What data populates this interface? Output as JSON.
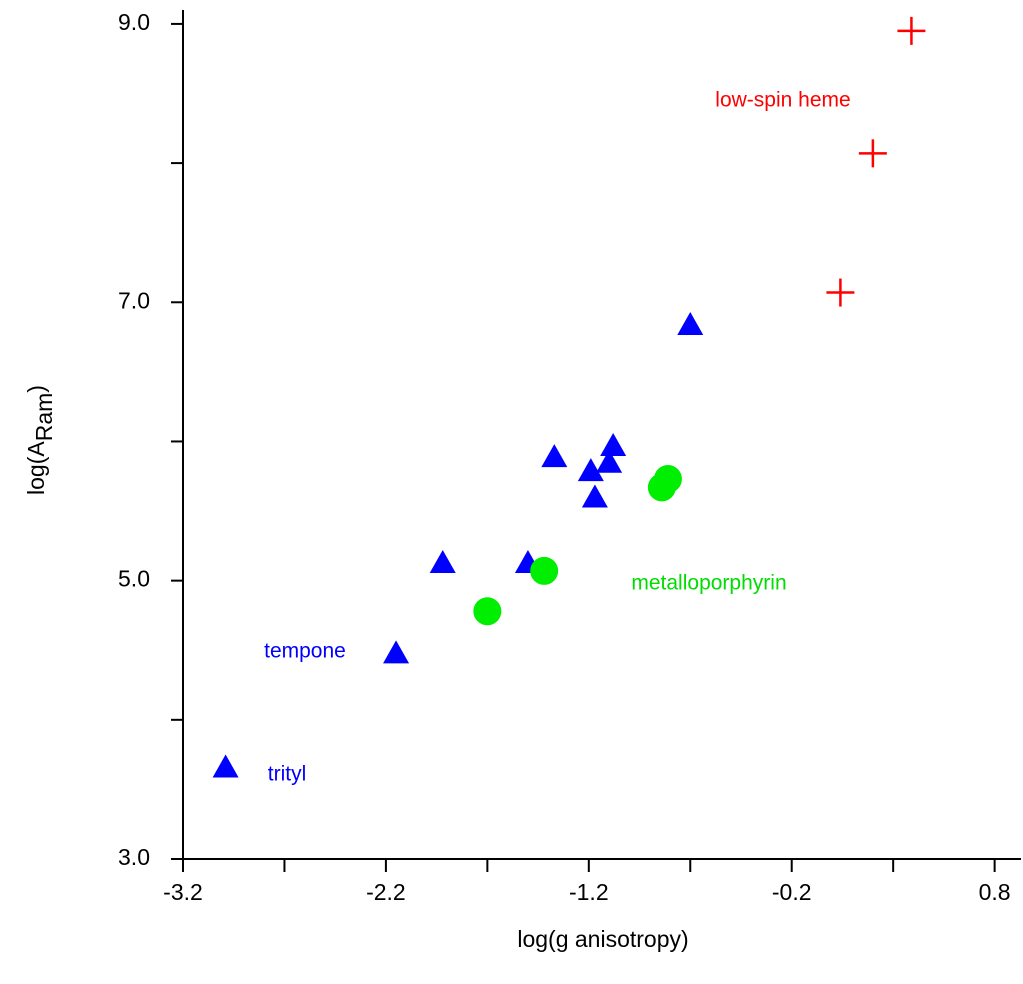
{
  "chart_data": {
    "type": "scatter",
    "x_label": "log(g anisotropy)",
    "y_label": [
      "log(A",
      "Ram",
      ")"
    ],
    "xlim": [
      -3.2,
      0.93
    ],
    "ylim": [
      3.0,
      9.1
    ],
    "xticks": [
      -3.2,
      -2.2,
      -1.2,
      -0.2,
      0.8
    ],
    "xminor_ticks": [
      -2.7,
      -1.7,
      -0.7,
      0.3
    ],
    "yticks": [
      {
        "value": 3,
        "label": "3.0"
      },
      {
        "value": 5,
        "label": "5.0"
      },
      {
        "value": 7,
        "label": "7.0"
      },
      {
        "value": 9,
        "label": "9.0"
      }
    ],
    "yminor_ticks": [
      4,
      6,
      8
    ],
    "series": [
      {
        "marker": "plus",
        "color": "#ff0000",
        "x": [
          0.39,
          0.2,
          0.04
        ],
        "y": [
          8.95,
          8.07,
          7.07
        ]
      },
      {
        "marker": "triangle",
        "color": "#0000ff",
        "x": [
          -0.7,
          -1.08,
          -1.37,
          -1.19,
          -1.1,
          -1.17,
          -1.92,
          -1.5,
          -2.15,
          -2.99
        ],
        "y": [
          6.83,
          5.96,
          5.88,
          5.78,
          5.84,
          5.59,
          5.12,
          5.12,
          4.47,
          3.65
        ]
      },
      {
        "marker": "circle",
        "color": "#00ee00",
        "x": [
          -1.7,
          -1.42,
          -0.84,
          -0.81
        ],
        "y": [
          4.78,
          5.07,
          5.67,
          5.73
        ]
      }
    ],
    "annotations": [
      {
        "text": "low-spin heme",
        "color": "#ff0000"
      },
      {
        "text": "metalloporphyrin",
        "color": "#00dd00"
      },
      {
        "text": "tempone",
        "color": "#0000ff"
      },
      {
        "text": "trityl",
        "color": "#0000ff"
      }
    ]
  }
}
